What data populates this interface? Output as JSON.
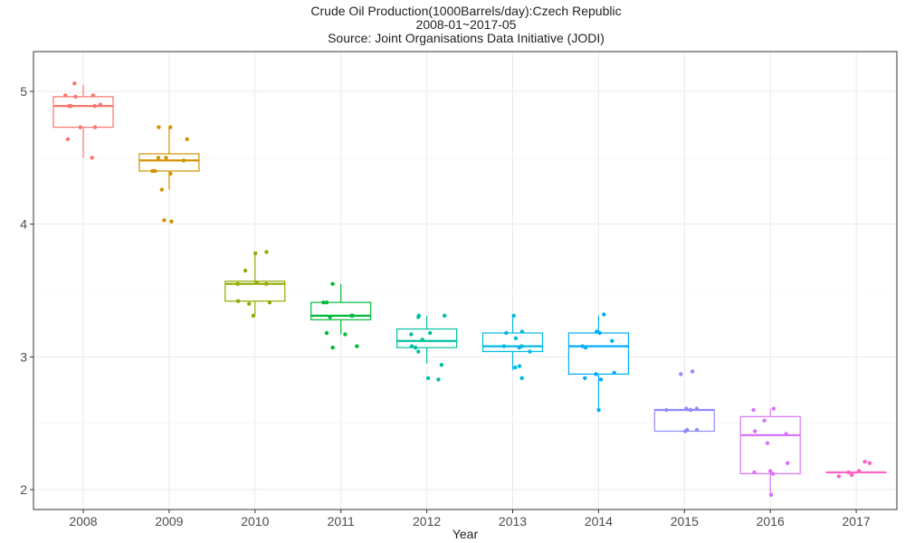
{
  "chart_data": {
    "type": "boxplot",
    "title": [
      "Crude Oil Production(1000Barrels/day):Czech Republic",
      "2008-01~2017-05",
      "Source: Joint Organisations Data Initiative (JODI)"
    ],
    "xlabel": "Year",
    "ylabel": "",
    "categories": [
      "2008",
      "2009",
      "2010",
      "2011",
      "2012",
      "2013",
      "2014",
      "2015",
      "2016",
      "2017"
    ],
    "ylim": [
      1.85,
      5.3
    ],
    "yticks": [
      2,
      3,
      4,
      5
    ],
    "grid": true,
    "legend": "none",
    "colors": [
      "#F8766D",
      "#D39200",
      "#93AA00",
      "#00BA38",
      "#00C19F",
      "#00B9E3",
      "#00ADFA",
      "#8F8BFF",
      "#DB72FB",
      "#FF61C3"
    ],
    "boxes": [
      {
        "category": "2008",
        "min": 4.5,
        "q1": 4.73,
        "median": 4.89,
        "q3": 4.96,
        "max": 5.05,
        "points": [
          4.5,
          4.64,
          4.73,
          4.73,
          4.89,
          4.89,
          4.89,
          4.9,
          4.96,
          4.97,
          4.97,
          5.06
        ]
      },
      {
        "category": "2009",
        "min": 4.26,
        "q1": 4.4,
        "median": 4.48,
        "q3": 4.53,
        "max": 4.73,
        "points": [
          4.02,
          4.03,
          4.26,
          4.38,
          4.4,
          4.4,
          4.48,
          4.5,
          4.5,
          4.64,
          4.73,
          4.73
        ]
      },
      {
        "category": "2010",
        "min": 3.32,
        "q1": 3.42,
        "median": 3.55,
        "q3": 3.57,
        "max": 3.78,
        "points": [
          3.31,
          3.4,
          3.41,
          3.42,
          3.55,
          3.55,
          3.56,
          3.65,
          3.78,
          3.79
        ]
      },
      {
        "category": "2011",
        "min": 3.17,
        "q1": 3.28,
        "median": 3.31,
        "q3": 3.41,
        "max": 3.55,
        "points": [
          3.07,
          3.08,
          3.17,
          3.18,
          3.3,
          3.31,
          3.31,
          3.41,
          3.41,
          3.55
        ]
      },
      {
        "category": "2012",
        "min": 2.95,
        "q1": 3.07,
        "median": 3.12,
        "q3": 3.21,
        "max": 3.31,
        "points": [
          2.83,
          2.84,
          2.94,
          3.04,
          3.07,
          3.08,
          3.13,
          3.17,
          3.18,
          3.3,
          3.31,
          3.31
        ]
      },
      {
        "category": "2013",
        "min": 2.9,
        "q1": 3.04,
        "median": 3.08,
        "q3": 3.18,
        "max": 3.31,
        "points": [
          2.84,
          2.92,
          2.93,
          3.04,
          3.07,
          3.08,
          3.08,
          3.14,
          3.18,
          3.19,
          3.31
        ]
      },
      {
        "category": "2014",
        "min": 2.6,
        "q1": 2.87,
        "median": 3.08,
        "q3": 3.18,
        "max": 3.31,
        "points": [
          2.6,
          2.83,
          2.84,
          2.87,
          2.88,
          3.07,
          3.08,
          3.12,
          3.18,
          3.19,
          3.32
        ]
      },
      {
        "category": "2015",
        "min": 2.44,
        "q1": 2.44,
        "median": 2.6,
        "q3": 2.6,
        "max": 2.6,
        "points": [
          2.44,
          2.45,
          2.45,
          2.6,
          2.6,
          2.6,
          2.61,
          2.61,
          2.87,
          2.89
        ]
      },
      {
        "category": "2016",
        "min": 1.95,
        "q1": 2.12,
        "median": 2.41,
        "q3": 2.55,
        "max": 2.61,
        "points": [
          1.96,
          2.12,
          2.13,
          2.14,
          2.2,
          2.35,
          2.42,
          2.44,
          2.52,
          2.6,
          2.61
        ]
      },
      {
        "category": "2017",
        "min": 2.13,
        "q1": 2.13,
        "median": 2.13,
        "q3": 2.13,
        "max": 2.13,
        "points": [
          2.1,
          2.11,
          2.13,
          2.14,
          2.2,
          2.21
        ]
      }
    ]
  }
}
